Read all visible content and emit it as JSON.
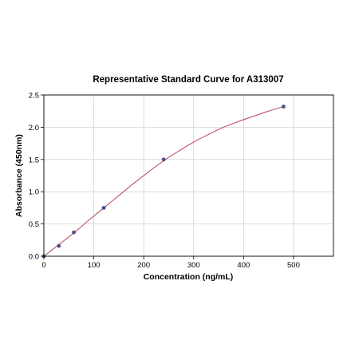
{
  "chart_data": {
    "type": "scatter",
    "title": "Representative Standard Curve for A313007",
    "xlabel": "Concentration (ng/mL)",
    "ylabel": "Absorbance (450nm)",
    "xlim": [
      0,
      580
    ],
    "ylim": [
      0,
      2.5
    ],
    "xticks": [
      0,
      100,
      200,
      300,
      400,
      500
    ],
    "xtick_labels": [
      "0",
      "100",
      "200",
      "300",
      "400",
      "500"
    ],
    "yticks": [
      0.0,
      0.5,
      1.0,
      1.5,
      2.0,
      2.5
    ],
    "ytick_labels": [
      "0.0",
      "0.5",
      "1.0",
      "1.5",
      "2.0",
      "2.5"
    ],
    "grid": true,
    "series": [
      {
        "x": [
          0,
          30,
          60,
          120,
          240,
          480
        ],
        "y": [
          0.0,
          0.16,
          0.37,
          0.75,
          1.5,
          2.32
        ],
        "marker_color": "#4a4e8a"
      }
    ],
    "fit_curve": {
      "x": [
        0,
        30,
        60,
        90,
        120,
        150,
        180,
        210,
        240,
        270,
        300,
        330,
        360,
        390,
        420,
        450,
        480
      ],
      "y": [
        0.0,
        0.18,
        0.36,
        0.56,
        0.75,
        0.94,
        1.13,
        1.31,
        1.48,
        1.63,
        1.77,
        1.89,
        2.0,
        2.09,
        2.17,
        2.25,
        2.32
      ],
      "line_color": "#c0506a"
    }
  }
}
